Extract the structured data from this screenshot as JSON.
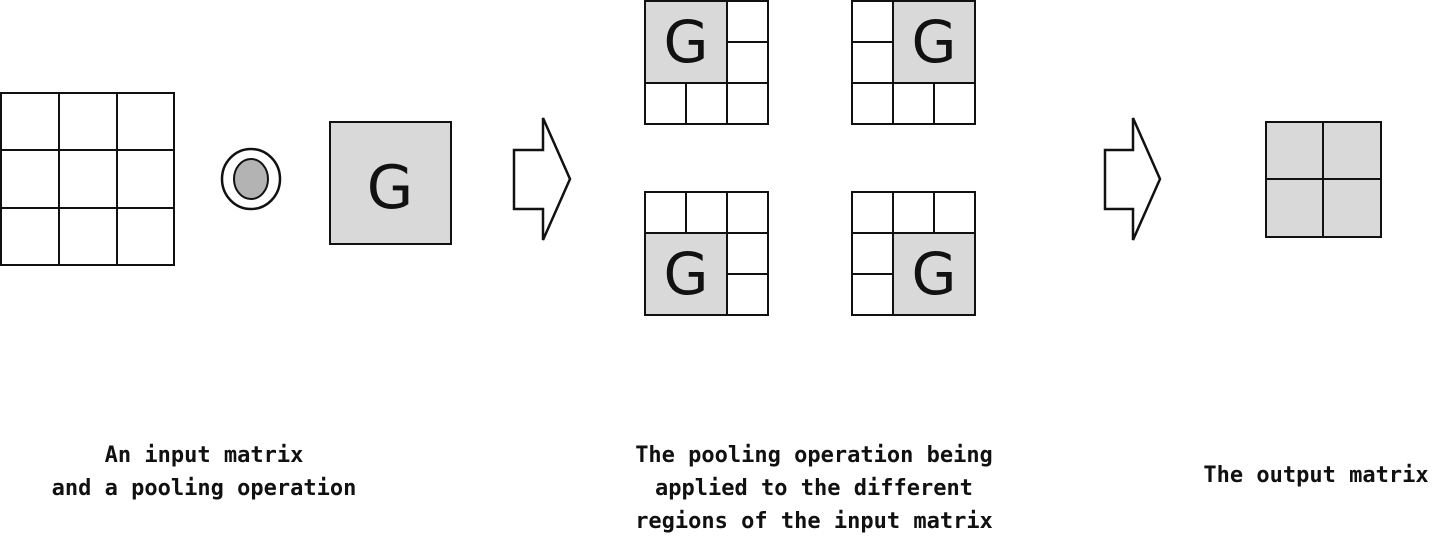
{
  "op_symbol": "G",
  "colors": {
    "line": "#111111",
    "pool_fill": "#d9d9d9",
    "op_fill": "#b3b3b3",
    "background": "#ffffff"
  },
  "captions": {
    "input": [
      "An input matrix",
      "and a pooling operation"
    ],
    "pooling": [
      "The pooling operation being",
      "applied to the different",
      "regions of the input matrix"
    ],
    "output": [
      "The output matrix"
    ]
  },
  "input_matrix": {
    "rows": 3,
    "cols": 3
  },
  "output_matrix": {
    "rows": 2,
    "cols": 2
  },
  "pooling_windows": [
    {
      "name": "window-top-left",
      "window_row": 0,
      "window_col": 0
    },
    {
      "name": "window-top-right",
      "window_row": 0,
      "window_col": 1
    },
    {
      "name": "window-bottom-left",
      "window_row": 1,
      "window_col": 0
    },
    {
      "name": "window-bottom-right",
      "window_row": 1,
      "window_col": 1
    }
  ]
}
